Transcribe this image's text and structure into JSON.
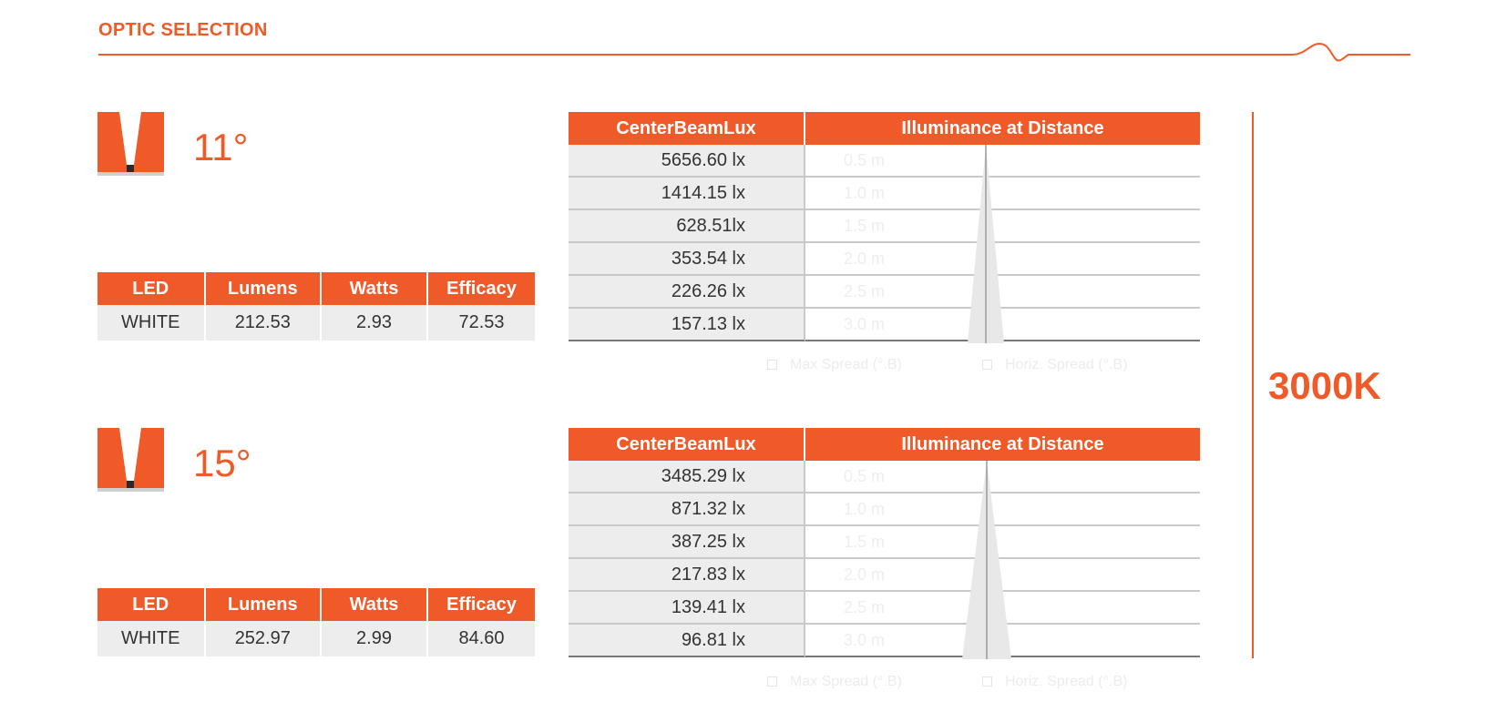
{
  "page": {
    "title": "OPTIC SELECTION",
    "cct": "3000K"
  },
  "colors": {
    "accent": "#f05a28",
    "cell_bg": "#ededed",
    "rule_gray": "#c9c9c9",
    "beam_fill": "#e8e8e8"
  },
  "icons": {
    "optic": "narrow-beam-optic-icon",
    "header_wave": "wave-line-icon"
  },
  "spec_columns": [
    "LED",
    "Lumens",
    "Watts",
    "Efficacy"
  ],
  "lux_columns": [
    "CenterBeamLux",
    "Illuminance at Distance"
  ],
  "optics": [
    {
      "angle": "11°",
      "spec": {
        "led": "WHITE",
        "lumens": "212.53",
        "watts": "2.93",
        "efficacy": "72.53"
      },
      "lux_rows": [
        {
          "lux": "5656.60 lx",
          "distance": "0.5 m"
        },
        {
          "lux": "1414.15 lx",
          "distance": "1.0 m"
        },
        {
          "lux": "628.51lx",
          "distance": "1.5 m"
        },
        {
          "lux": "353.54 lx",
          "distance": "2.0 m"
        },
        {
          "lux": "226.26 lx",
          "distance": "2.5 m"
        },
        {
          "lux": "157.13 lx",
          "distance": "3.0 m"
        }
      ],
      "legend": [
        "Max Spread (°.B)",
        "Horiz. Spread (°.B)"
      ]
    },
    {
      "angle": "15°",
      "spec": {
        "led": "WHITE",
        "lumens": "252.97",
        "watts": "2.99",
        "efficacy": "84.60"
      },
      "lux_rows": [
        {
          "lux": "3485.29 lx",
          "distance": "0.5 m"
        },
        {
          "lux": "871.32 lx",
          "distance": "1.0 m"
        },
        {
          "lux": "387.25 lx",
          "distance": "1.5 m"
        },
        {
          "lux": "217.83 lx",
          "distance": "2.0 m"
        },
        {
          "lux": "139.41 lx",
          "distance": "2.5 m"
        },
        {
          "lux": "96.81 lx",
          "distance": "3.0 m"
        }
      ],
      "legend": [
        "Max Spread (°.B)",
        "Horiz. Spread (°.B)"
      ]
    }
  ]
}
